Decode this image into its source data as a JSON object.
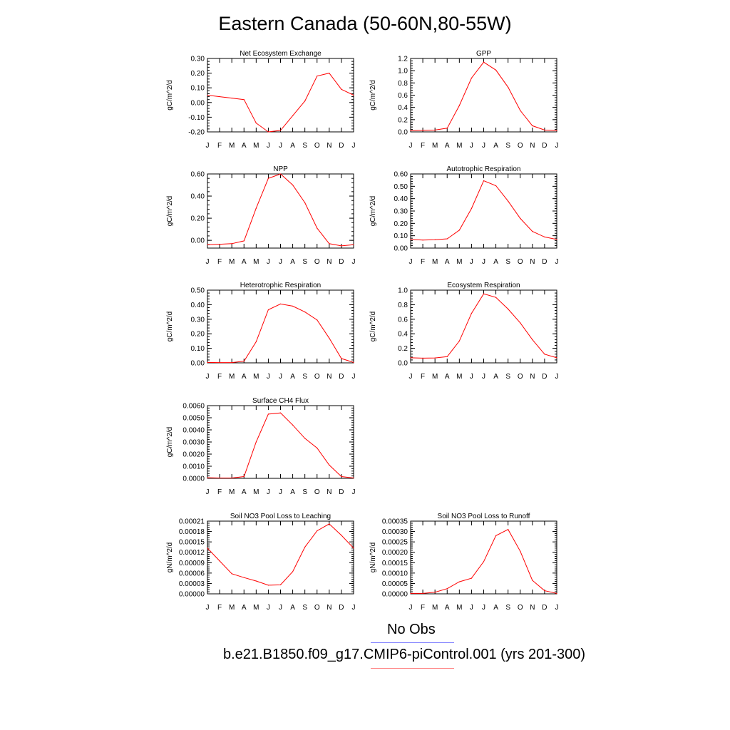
{
  "page": {
    "title": "Eastern Canada (50-60N,80-55W)"
  },
  "months": [
    "J",
    "F",
    "M",
    "A",
    "M",
    "J",
    "J",
    "A",
    "S",
    "O",
    "N",
    "D",
    "J"
  ],
  "chart_data": [
    {
      "type": "line",
      "title": "Net Ecosystem Exchange",
      "ylabel": "gC/m^2/d",
      "ylim": [
        -0.2,
        0.3
      ],
      "yticks": [
        -0.2,
        -0.1,
        0.0,
        0.1,
        0.2,
        0.3
      ],
      "ydec": 2,
      "x": [
        "J",
        "F",
        "M",
        "A",
        "M",
        "J",
        "J",
        "A",
        "S",
        "O",
        "N",
        "D",
        "J"
      ],
      "series": [
        {
          "color": "#ff0000",
          "values": [
            0.05,
            0.04,
            0.03,
            0.02,
            -0.14,
            -0.2,
            -0.19,
            -0.09,
            0.01,
            0.18,
            0.2,
            0.09,
            0.05
          ]
        }
      ]
    },
    {
      "type": "line",
      "title": "GPP",
      "ylabel": "gC/m^2/d",
      "ylim": [
        0.0,
        1.2
      ],
      "yticks": [
        0.0,
        0.2,
        0.4,
        0.6,
        0.8,
        1.0,
        1.2
      ],
      "ydec": 1,
      "x": [
        "J",
        "F",
        "M",
        "A",
        "M",
        "J",
        "J",
        "A",
        "S",
        "O",
        "N",
        "D",
        "J"
      ],
      "series": [
        {
          "color": "#ff0000",
          "values": [
            0.02,
            0.025,
            0.03,
            0.06,
            0.43,
            0.88,
            1.14,
            1.01,
            0.73,
            0.35,
            0.1,
            0.03,
            0.02
          ]
        }
      ]
    },
    {
      "type": "line",
      "title": "NPP",
      "ylabel": "gC/m^2/d",
      "ylim": [
        -0.07,
        0.6
      ],
      "yticks": [
        0.0,
        0.2,
        0.4,
        0.6
      ],
      "ydec": 2,
      "x": [
        "J",
        "F",
        "M",
        "A",
        "M",
        "J",
        "J",
        "A",
        "S",
        "O",
        "N",
        "D",
        "J"
      ],
      "series": [
        {
          "color": "#ff0000",
          "values": [
            -0.04,
            -0.035,
            -0.03,
            -0.005,
            0.29,
            0.56,
            0.6,
            0.5,
            0.34,
            0.11,
            -0.03,
            -0.05,
            -0.04
          ]
        }
      ]
    },
    {
      "type": "line",
      "title": "Autotrophic Respiration",
      "ylabel": "gC/m^2/d",
      "ylim": [
        0.0,
        0.6
      ],
      "yticks": [
        0.0,
        0.1,
        0.2,
        0.3,
        0.4,
        0.5,
        0.6
      ],
      "ydec": 2,
      "x": [
        "J",
        "F",
        "M",
        "A",
        "M",
        "J",
        "J",
        "A",
        "S",
        "O",
        "N",
        "D",
        "J"
      ],
      "series": [
        {
          "color": "#ff0000",
          "values": [
            0.07,
            0.065,
            0.068,
            0.075,
            0.145,
            0.32,
            0.545,
            0.505,
            0.38,
            0.24,
            0.135,
            0.09,
            0.07
          ]
        }
      ]
    },
    {
      "type": "line",
      "title": "Heterotrophic Respiration",
      "ylabel": "gC/m^2/d",
      "ylim": [
        0.0,
        0.5
      ],
      "yticks": [
        0.0,
        0.1,
        0.2,
        0.3,
        0.4,
        0.5
      ],
      "ydec": 2,
      "x": [
        "J",
        "F",
        "M",
        "A",
        "M",
        "J",
        "J",
        "A",
        "S",
        "O",
        "N",
        "D",
        "J"
      ],
      "series": [
        {
          "color": "#ff0000",
          "values": [
            0.003,
            0.002,
            0.002,
            0.012,
            0.145,
            0.365,
            0.405,
            0.39,
            0.35,
            0.295,
            0.17,
            0.03,
            0.003
          ]
        }
      ]
    },
    {
      "type": "line",
      "title": "Ecosystem Respiration",
      "ylabel": "gC/m^2/d",
      "ylim": [
        0.0,
        1.0
      ],
      "yticks": [
        0.0,
        0.2,
        0.4,
        0.6,
        0.8,
        1.0
      ],
      "ydec": 1,
      "x": [
        "J",
        "F",
        "M",
        "A",
        "M",
        "J",
        "J",
        "A",
        "S",
        "O",
        "N",
        "D",
        "J"
      ],
      "series": [
        {
          "color": "#ff0000",
          "values": [
            0.07,
            0.065,
            0.068,
            0.085,
            0.3,
            0.68,
            0.95,
            0.9,
            0.74,
            0.55,
            0.32,
            0.12,
            0.07
          ]
        }
      ]
    },
    {
      "type": "line",
      "title": "Surface CH4 Flux",
      "ylabel": "gC/m^2/d",
      "ylim": [
        0.0,
        0.006
      ],
      "yticks": [
        0.0,
        0.001,
        0.002,
        0.003,
        0.004,
        0.005,
        0.006
      ],
      "ydec": 4,
      "x": [
        "J",
        "F",
        "M",
        "A",
        "M",
        "J",
        "J",
        "A",
        "S",
        "O",
        "N",
        "D",
        "J"
      ],
      "series": [
        {
          "color": "#ff0000",
          "values": [
            5e-05,
            3e-05,
            3e-05,
            0.00015,
            0.003,
            0.0053,
            0.0054,
            0.0044,
            0.0033,
            0.0025,
            0.0011,
            0.00015,
            3e-05
          ]
        }
      ]
    },
    {
      "type": "line",
      "title": "Soil NO3 Pool Loss to Leaching",
      "ylabel": "gN/m^2/d",
      "ylim": [
        0.0,
        0.00021
      ],
      "yticks": [
        0.0,
        3e-05,
        6e-05,
        9e-05,
        0.00012,
        0.00015,
        0.00018,
        0.00021
      ],
      "ydec": 5,
      "x": [
        "J",
        "F",
        "M",
        "A",
        "M",
        "J",
        "J",
        "A",
        "S",
        "O",
        "N",
        "D",
        "J"
      ],
      "series": [
        {
          "color": "#ff0000",
          "values": [
            0.000132,
            9.5e-05,
            5.8e-05,
            4.7e-05,
            3.7e-05,
            2.5e-05,
            2.6e-05,
            6.4e-05,
            0.000135,
            0.000182,
            0.000202,
            0.000169,
            0.000132
          ]
        }
      ]
    },
    {
      "type": "line",
      "title": "Soil NO3 Pool Loss to Runoff",
      "ylabel": "gN/m^2/d",
      "ylim": [
        0.0,
        0.00035
      ],
      "yticks": [
        0.0,
        5e-05,
        0.0001,
        0.00015,
        0.0002,
        0.00025,
        0.0003,
        0.00035
      ],
      "ydec": 5,
      "x": [
        "J",
        "F",
        "M",
        "A",
        "M",
        "J",
        "J",
        "A",
        "S",
        "O",
        "N",
        "D",
        "J"
      ],
      "series": [
        {
          "color": "#ff0000",
          "values": [
            2e-06,
            2e-06,
            8e-06,
            2.5e-05,
            5.8e-05,
            7.5e-05,
            0.000155,
            0.00028,
            0.00031,
            0.000205,
            6.5e-05,
            1.5e-05,
            2e-06
          ]
        }
      ]
    }
  ],
  "legend": [
    {
      "label": "No Obs",
      "color": "#8080ff"
    },
    {
      "label": "b.e21.B1850.f09_g17.CMIP6-piControl.001 (yrs 201-300)",
      "color": "#ff8080"
    }
  ]
}
